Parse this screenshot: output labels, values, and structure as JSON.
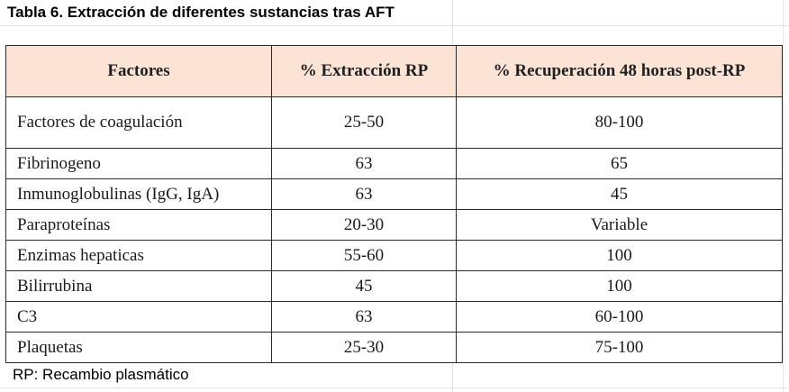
{
  "caption": "Tabla 6.  Extracción de diferentes sustancias tras AFT",
  "table": {
    "headers": [
      "Factores",
      "% Extracción RP",
      "% Recuperación 48 horas post-RP"
    ],
    "rows": [
      [
        "Factores de coagulación",
        "25-50",
        "80-100"
      ],
      [
        "Fibrinogeno",
        "63",
        "65"
      ],
      [
        "Inmunoglobulinas (IgG, IgA)",
        "63",
        "45"
      ],
      [
        "Paraproteínas",
        "20-30",
        "Variable"
      ],
      [
        "Enzimas hepaticas",
        "55-60",
        "100"
      ],
      [
        "Bilirrubina",
        "45",
        "100"
      ],
      [
        "C3",
        "63",
        "60-100"
      ],
      [
        "Plaquetas",
        "25-30",
        "75-100"
      ]
    ]
  },
  "footnote": "RP: Recambio plasmático",
  "colors": {
    "header_fill": "#fbe4d5",
    "border": "#2b2b2b"
  }
}
